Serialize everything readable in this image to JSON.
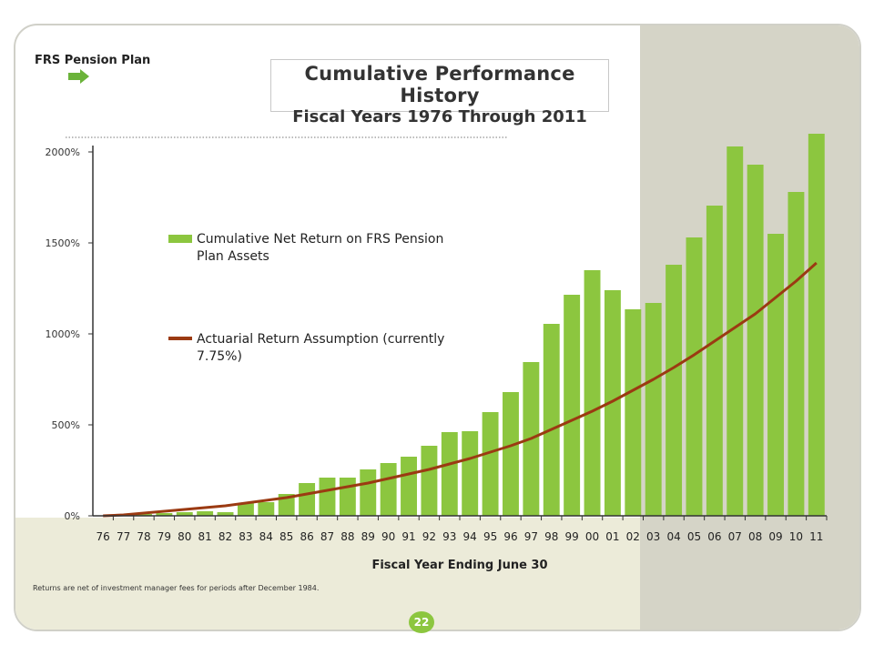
{
  "header": {
    "plan_label": "FRS Pension Plan",
    "title": "Cumulative Performance History",
    "subtitle": "Fiscal Years 1976 Through 2011"
  },
  "footer": {
    "note": "Returns are net of investment manager fees for periods after December 1984.",
    "page_number": "22"
  },
  "icons": {
    "arrow": "right-arrow-icon"
  },
  "colors": {
    "bar": "#8cc63f",
    "line": "#9b3a12",
    "axis": "#333333",
    "page_badge": "#8cc63f"
  },
  "chart_data": {
    "type": "bar",
    "title": "Cumulative Performance History",
    "subtitle": "Fiscal Years 1976 Through 2011",
    "xlabel": "Fiscal Year Ending June 30",
    "ylabel": "",
    "ylim": [
      0,
      2000
    ],
    "yticks": [
      "0%",
      "500%",
      "1000%",
      "1500%",
      "2000%"
    ],
    "categories": [
      "76",
      "77",
      "78",
      "79",
      "80",
      "81",
      "82",
      "83",
      "84",
      "85",
      "86",
      "87",
      "88",
      "89",
      "90",
      "91",
      "92",
      "93",
      "94",
      "95",
      "96",
      "97",
      "98",
      "99",
      "00",
      "01",
      "02",
      "03",
      "04",
      "05",
      "06",
      "07",
      "08",
      "09",
      "10",
      "11"
    ],
    "series": [
      {
        "name": "Cumulative Net Return on FRS Pension Plan Assets",
        "kind": "bar",
        "values": [
          2,
          5,
          10,
          15,
          20,
          25,
          20,
          70,
          75,
          120,
          180,
          210,
          210,
          255,
          290,
          325,
          385,
          460,
          465,
          570,
          680,
          845,
          1055,
          1215,
          1350,
          1240,
          1135,
          1170,
          1380,
          1530,
          1705,
          2030,
          1930,
          1550,
          1780,
          2100
        ]
      },
      {
        "name": "Actuarial Return Assumption (currently 7.75%)",
        "kind": "line",
        "values": [
          0,
          5,
          15,
          25,
          35,
          45,
          55,
          70,
          85,
          100,
          120,
          140,
          160,
          180,
          205,
          230,
          255,
          285,
          315,
          350,
          385,
          425,
          475,
          525,
          575,
          630,
          690,
          750,
          815,
          885,
          960,
          1035,
          1110,
          1200,
          1290,
          1390
        ]
      }
    ],
    "legend_position": "upper-left-inside"
  }
}
